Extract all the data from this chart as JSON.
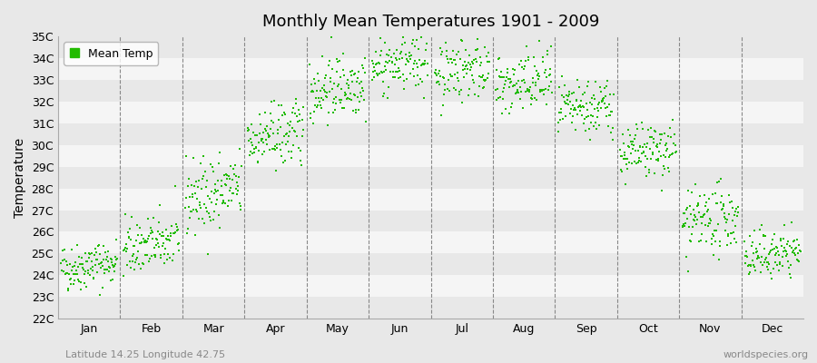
{
  "title": "Monthly Mean Temperatures 1901 - 2009",
  "ylabel": "Temperature",
  "subtitle_left": "Latitude 14.25 Longitude 42.75",
  "subtitle_right": "worldspecies.org",
  "legend_label": "Mean Temp",
  "marker_color": "#22bb00",
  "background_color": "#e8e8e8",
  "band_color_light": "#e8e8e8",
  "band_color_white": "#f5f5f5",
  "ylim": [
    22,
    35
  ],
  "ytick_labels": [
    "22C",
    "23C",
    "24C",
    "25C",
    "26C",
    "27C",
    "28C",
    "29C",
    "30C",
    "31C",
    "32C",
    "33C",
    "34C",
    "35C"
  ],
  "months": [
    "Jan",
    "Feb",
    "Mar",
    "Apr",
    "May",
    "Jun",
    "Jul",
    "Aug",
    "Sep",
    "Oct",
    "Nov",
    "Dec"
  ],
  "num_years": 109,
  "monthly_means": [
    24.3,
    25.2,
    27.5,
    30.2,
    32.5,
    33.5,
    33.3,
    32.6,
    31.5,
    29.5,
    26.3,
    24.8
  ],
  "monthly_stds": [
    0.55,
    0.65,
    0.85,
    0.75,
    0.75,
    0.65,
    0.75,
    0.75,
    0.65,
    0.65,
    0.75,
    0.55
  ],
  "monthly_trends": [
    0.003,
    0.004,
    0.005,
    0.004,
    0.004,
    0.004,
    0.004,
    0.004,
    0.003,
    0.003,
    0.004,
    0.003
  ]
}
